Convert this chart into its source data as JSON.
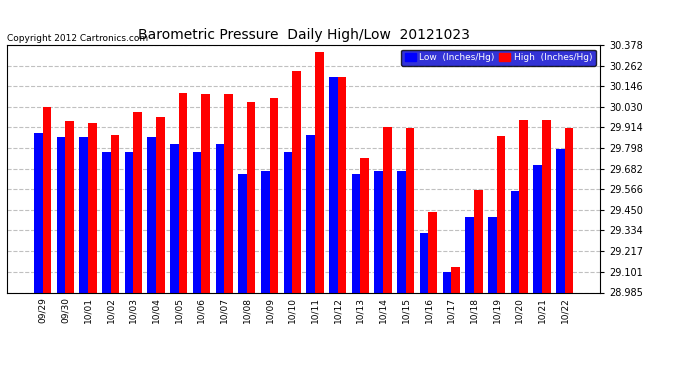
{
  "title": "Barometric Pressure  Daily High/Low  20121023",
  "copyright": "Copyright 2012 Cartronics.com",
  "legend_low": "Low  (Inches/Hg)",
  "legend_high": "High  (Inches/Hg)",
  "dates": [
    "09/29",
    "09/30",
    "10/01",
    "10/02",
    "10/03",
    "10/04",
    "10/05",
    "10/06",
    "10/07",
    "10/08",
    "10/09",
    "10/10",
    "10/11",
    "10/12",
    "10/13",
    "10/14",
    "10/15",
    "10/16",
    "10/17",
    "10/18",
    "10/19",
    "10/20",
    "10/21",
    "10/22"
  ],
  "low_values": [
    29.882,
    29.862,
    29.862,
    29.778,
    29.778,
    29.858,
    29.82,
    29.778,
    29.82,
    29.654,
    29.67,
    29.778,
    29.87,
    30.2,
    29.65,
    29.668,
    29.668,
    29.32,
    29.101,
    29.41,
    29.41,
    29.556,
    29.7,
    29.79
  ],
  "high_values": [
    30.028,
    29.952,
    29.94,
    29.87,
    30.0,
    29.97,
    30.108,
    30.1,
    30.1,
    30.06,
    30.08,
    30.23,
    30.34,
    30.2,
    29.74,
    29.918,
    29.912,
    29.44,
    29.13,
    29.56,
    29.864,
    29.958,
    29.958,
    29.912
  ],
  "ylim_min": 28.985,
  "ylim_max": 30.378,
  "yticks": [
    28.985,
    29.101,
    29.217,
    29.334,
    29.45,
    29.566,
    29.682,
    29.798,
    29.914,
    30.03,
    30.146,
    30.262,
    30.378
  ],
  "bar_color_low": "#0000ff",
  "bar_color_high": "#ff0000",
  "fig_bg_color": "#ffffff",
  "plot_bg_color": "#ffffff",
  "grid_color": "#c0c0c0",
  "title_color": "#000000",
  "axis_label_color": "#000000",
  "bar_width": 0.38,
  "legend_bg_blue": "#0000cc",
  "legend_text_color": "#ffffff"
}
